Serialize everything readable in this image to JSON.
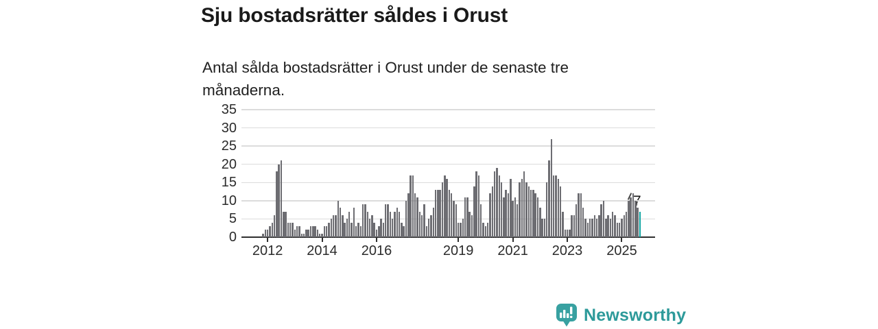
{
  "header": {
    "title": "Sju bostadsrätter såldes i Orust",
    "subtitle": "Antal sålda bostadsrätter i Orust under de senaste tre månaderna."
  },
  "chart_data": {
    "type": "bar",
    "title": "Sju bostadsrätter såldes i Orust",
    "xlabel": "",
    "ylabel": "",
    "ylim": [
      0,
      35
    ],
    "yticks": [
      0,
      5,
      10,
      15,
      20,
      25,
      30,
      35
    ],
    "xtick_years": [
      2012,
      2014,
      2016,
      2019,
      2021,
      2023,
      2025
    ],
    "grid": true,
    "legend": "none",
    "frequency": "monthly",
    "start_month": "2011-11",
    "end_month": "2025-09",
    "values": [
      1,
      2,
      2,
      3,
      4,
      6,
      18,
      20,
      21,
      7,
      7,
      4,
      4,
      4,
      2,
      3,
      3,
      1,
      1,
      2,
      2,
      3,
      3,
      3,
      2,
      1,
      1,
      3,
      3,
      4,
      5,
      6,
      6,
      10,
      8,
      6,
      4,
      5,
      7,
      4,
      8,
      3,
      4,
      3,
      9,
      9,
      7,
      5,
      6,
      4,
      2,
      3,
      5,
      4,
      9,
      9,
      7,
      5,
      7,
      8,
      7,
      4,
      3,
      10,
      12,
      17,
      17,
      12,
      11,
      7,
      6,
      9,
      3,
      5,
      6,
      8,
      13,
      13,
      13,
      15,
      17,
      16,
      13,
      12,
      10,
      9,
      4,
      4,
      5,
      11,
      11,
      7,
      6,
      14,
      18,
      17,
      9,
      4,
      3,
      4,
      12,
      14,
      18,
      19,
      17,
      15,
      11,
      13,
      12,
      16,
      10,
      11,
      9,
      15,
      16,
      18,
      15,
      14,
      13,
      13,
      12,
      11,
      8,
      5,
      5,
      15,
      21,
      27,
      17,
      17,
      16,
      14,
      7,
      2,
      2,
      2,
      6,
      6,
      9,
      12,
      12,
      8,
      5,
      4,
      5,
      5,
      6,
      5,
      6,
      9,
      10,
      5,
      6,
      5,
      7,
      6,
      4,
      4,
      5,
      6,
      7,
      10,
      11,
      12,
      10,
      8,
      7
    ],
    "highlight": {
      "index": 166,
      "value": 7,
      "label": "7"
    },
    "colors": {
      "bar": "#6d6d72",
      "highlight": "#0ba3a1",
      "grid": "#dcdcdc",
      "axis": "#2e2e2e",
      "tick_text": "#2b2b2b"
    }
  },
  "footer": {
    "brand_name": "Newsworthy",
    "brand_color": "#2d9a9a",
    "icon_color": "#38a1a1",
    "icon": "newsworthy-speech-bubble-bar-chart-icon"
  }
}
